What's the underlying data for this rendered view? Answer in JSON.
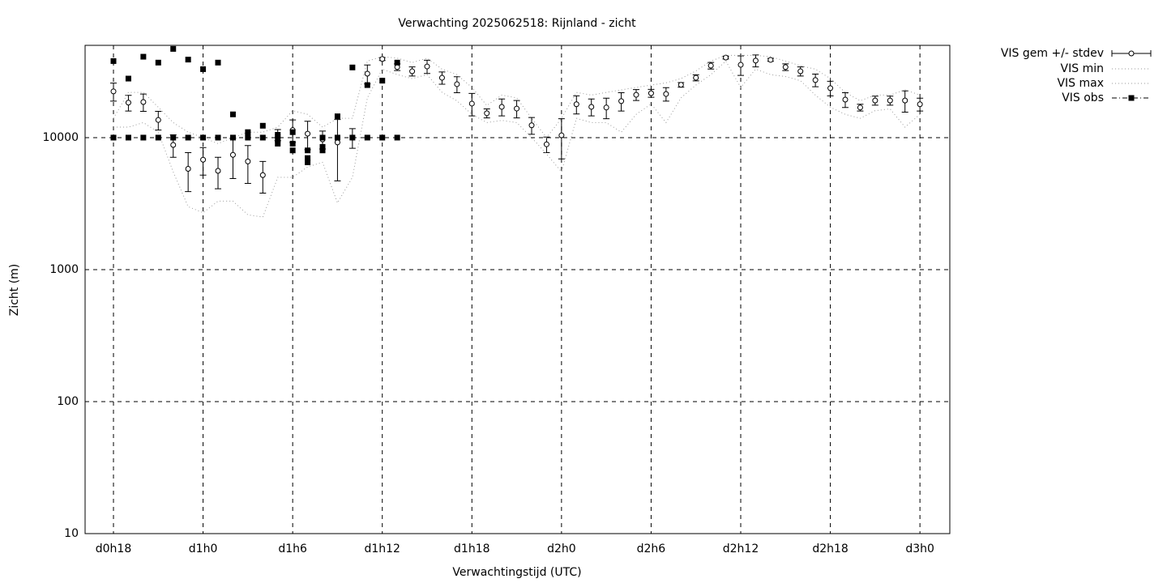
{
  "chart_data": {
    "type": "line",
    "title": "Verwachting 2025062518: Rijnland - zicht",
    "x_label": "Verwachtingstijd (UTC)",
    "y_label": "Zicht (m)",
    "log_y": true,
    "grid": true,
    "legend": "outside-top-right",
    "xlim": [
      16.1,
      74
    ],
    "ylim": [
      10,
      50000
    ],
    "xticks": [
      {
        "value": 18,
        "label": "d0h18"
      },
      {
        "value": 24,
        "label": "d1h0"
      },
      {
        "value": 30,
        "label": "d1h6"
      },
      {
        "value": 36,
        "label": "d1h12"
      },
      {
        "value": 42,
        "label": "d1h18"
      },
      {
        "value": 48,
        "label": "d2h0"
      },
      {
        "value": 54,
        "label": "d2h6"
      },
      {
        "value": 60,
        "label": "d2h12"
      },
      {
        "value": 66,
        "label": "d2h18"
      },
      {
        "value": 72,
        "label": "d3h0"
      }
    ],
    "yticks": [
      10,
      100,
      1000,
      10000
    ],
    "x": [
      18,
      19,
      20,
      21,
      22,
      23,
      24,
      25,
      26,
      27,
      28,
      29,
      30,
      31,
      32,
      33,
      34,
      35,
      36,
      37,
      38,
      39,
      40,
      41,
      42,
      43,
      44,
      45,
      46,
      47,
      48,
      49,
      50,
      51,
      52,
      53,
      54,
      55,
      56,
      57,
      58,
      59,
      60,
      61,
      62,
      63,
      64,
      65,
      66,
      67,
      68,
      69,
      70,
      71,
      72
    ],
    "series": [
      {
        "name": "VIS gem +/- stdev",
        "color": "#000000",
        "style": "errorbars",
        "values": [
          22400,
          18400,
          18600,
          13600,
          8800,
          5800,
          6800,
          5600,
          7400,
          6600,
          5200,
          10500,
          11400,
          10700,
          9700,
          9200,
          10000,
          30500,
          39400,
          34200,
          31800,
          34600,
          28400,
          25400,
          18100,
          15300,
          17100,
          16600,
          12400,
          8900,
          10400,
          17900,
          17100,
          16900,
          18900,
          21100,
          21700,
          21400,
          25100,
          28400,
          35100,
          40400,
          35600,
          38300,
          38800,
          34200,
          31800,
          27300,
          23700,
          19400,
          16900,
          19100,
          19100,
          19100,
          17900
        ],
        "error": [
          3500,
          2500,
          2800,
          2200,
          1700,
          1900,
          1600,
          1500,
          2500,
          2100,
          1400,
          1000,
          2200,
          2600,
          1500,
          4500,
          1700,
          5000,
          1000,
          2000,
          2500,
          4000,
          3000,
          3500,
          3500,
          1200,
          2500,
          2500,
          1800,
          1200,
          3500,
          2800,
          2500,
          3000,
          3000,
          2000,
          1500,
          2500,
          1000,
          1500,
          2000,
          1000,
          6000,
          4000,
          1000,
          2000,
          2500,
          3000,
          3000,
          2500,
          1000,
          1500,
          1500,
          3500,
          2000
        ]
      },
      {
        "name": "VIS min",
        "color": "#999999",
        "style": "dotted",
        "values": [
          12000,
          12000,
          13000,
          11000,
          5500,
          3000,
          2700,
          3300,
          3300,
          2600,
          2500,
          5000,
          5000,
          6000,
          6500,
          3200,
          5000,
          20000,
          33000,
          30000,
          28000,
          30000,
          22000,
          19000,
          15000,
          13000,
          13500,
          13000,
          10000,
          7500,
          5500,
          14000,
          13000,
          13000,
          11000,
          15000,
          18000,
          13000,
          20000,
          25000,
          30000,
          38000,
          24000,
          33000,
          30000,
          29000,
          27000,
          21000,
          17000,
          15000,
          14000,
          16000,
          16500,
          12000,
          15000
        ]
      },
      {
        "name": "VIS max",
        "color": "#999999",
        "style": "dotted",
        "values": [
          14000,
          22000,
          22000,
          17000,
          13000,
          11000,
          10000,
          9000,
          10000,
          11000,
          11000,
          12000,
          16000,
          15000,
          12000,
          14000,
          14000,
          38000,
          41000,
          40000,
          37000,
          40000,
          33000,
          30000,
          24000,
          17500,
          21000,
          20000,
          14000,
          10000,
          14000,
          22000,
          21000,
          22000,
          23000,
          24000,
          25000,
          26000,
          28000,
          32000,
          38000,
          42000,
          42000,
          42000,
          41000,
          38000,
          35000,
          33000,
          28000,
          22000,
          19000,
          21000,
          21000,
          23000,
          21000
        ]
      },
      {
        "name": "VIS obs",
        "color": "#000000",
        "style": "squares",
        "x": [
          18,
          18,
          19,
          19,
          20,
          20,
          21,
          21,
          22,
          22,
          23,
          23,
          24,
          24,
          25,
          25,
          26,
          26,
          27,
          27,
          28,
          28,
          29,
          29,
          29,
          30,
          30,
          30,
          31,
          31,
          31,
          32,
          32,
          32,
          33,
          33,
          34,
          34,
          35,
          35,
          36,
          36,
          37,
          37
        ],
        "values": [
          38000,
          10000,
          28000,
          10000,
          41000,
          10000,
          37000,
          10000,
          47000,
          10000,
          39000,
          10000,
          33000,
          10000,
          37000,
          10000,
          15000,
          10000,
          11000,
          10000,
          12300,
          10000,
          10500,
          9700,
          9000,
          8000,
          9000,
          11000,
          8000,
          7000,
          6500,
          8000,
          8500,
          10000,
          14500,
          10000,
          34000,
          10000,
          25000,
          10000,
          27000,
          10000,
          37000,
          10000
        ]
      }
    ]
  }
}
